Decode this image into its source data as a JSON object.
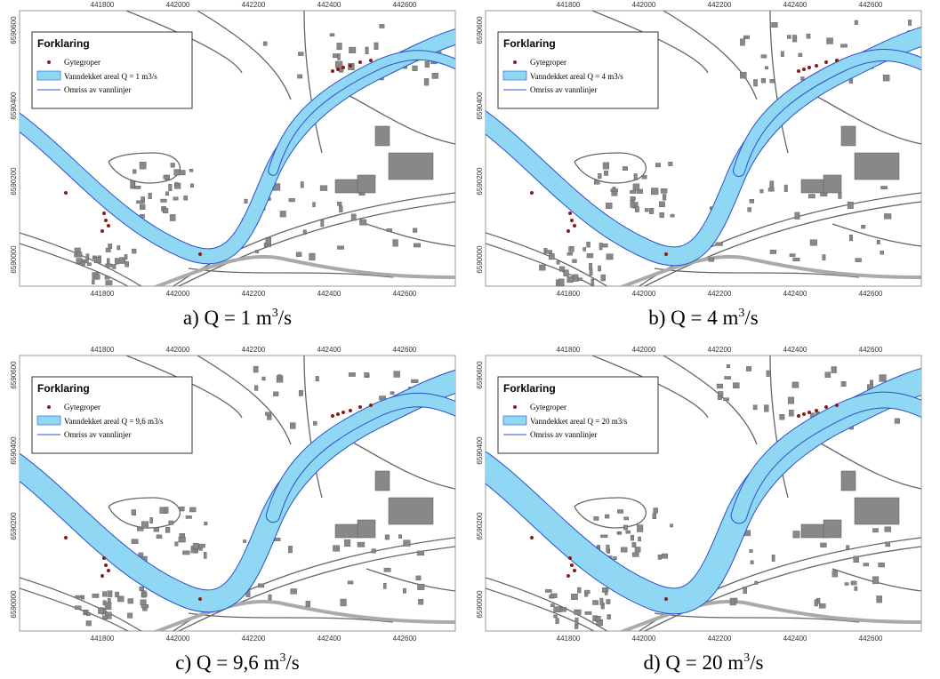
{
  "x_ticks": [
    "441800",
    "442000",
    "442200",
    "442400",
    "442600"
  ],
  "y_ticks": [
    "6590600",
    "6590400",
    "6590200",
    "6590000"
  ],
  "legend": {
    "title": "Forklaring",
    "items": [
      "Gytegroper",
      "Omriss av vannlinjer"
    ]
  },
  "panels": [
    {
      "legend_area": "Vanndekket areal Q = 1 m3/s",
      "caption": {
        "prefix": "a) Q = 1 m",
        "superscript": "3",
        "suffix": "/s"
      }
    },
    {
      "legend_area": "Vanndekket areal Q = 4 m3/s",
      "caption": {
        "prefix": "b) Q = 4 m",
        "superscript": "3",
        "suffix": "/s"
      }
    },
    {
      "legend_area": "Vanndekket areal Q = 9,6 m3/s",
      "caption": {
        "prefix": "c) Q = 9,6 m",
        "superscript": "3",
        "suffix": "/s"
      }
    },
    {
      "legend_area": "Vanndekket areal Q = 20 m3/s",
      "caption": {
        "prefix": "d) Q = 20 m",
        "superscript": "3",
        "suffix": "/s"
      }
    }
  ]
}
